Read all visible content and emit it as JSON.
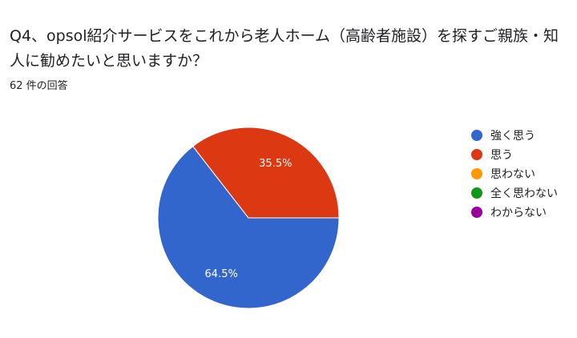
{
  "title": "Q4、opsol紹介サービスをこれから老人ホーム（高齢者施設）を探すご親族・知人に勧めたいと思いますか？",
  "response_count": "62 件の回答",
  "chart_data": {
    "type": "pie",
    "categories": [
      "強く思う",
      "思う",
      "思わない",
      "全く思わない",
      "わからない"
    ],
    "values": [
      64.5,
      35.5,
      0,
      0,
      0
    ],
    "data_labels": [
      "64.5%",
      "35.5%",
      "",
      "",
      ""
    ],
    "colors": [
      "#3366cc",
      "#dc3912",
      "#ff9900",
      "#109618",
      "#990099"
    ],
    "legend_position": "right"
  }
}
